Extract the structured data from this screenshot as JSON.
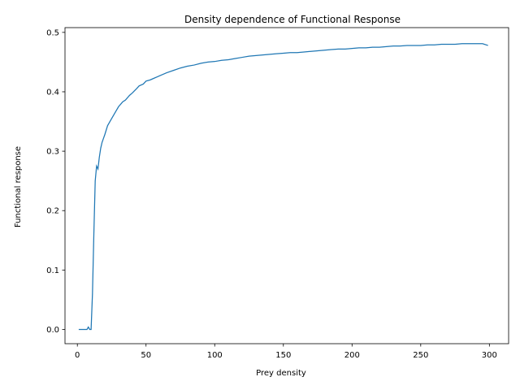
{
  "chart_data": {
    "type": "line",
    "title": "Density dependence of Functional Response",
    "xlabel": "Prey density",
    "ylabel": "Functional response",
    "xlim": [
      -9,
      314
    ],
    "ylim": [
      -0.024,
      0.508
    ],
    "xticks": [
      0,
      50,
      100,
      150,
      200,
      250,
      300
    ],
    "yticks": [
      0.0,
      0.1,
      0.2,
      0.3,
      0.4,
      0.5
    ],
    "xtick_labels": [
      "0",
      "50",
      "100",
      "150",
      "200",
      "250",
      "300"
    ],
    "ytick_labels": [
      "0.0",
      "0.1",
      "0.2",
      "0.3",
      "0.4",
      "0.5"
    ],
    "grid": false,
    "legend": "none",
    "line_color": "#1f77b4",
    "series": [
      {
        "x": [
          1,
          3,
          5,
          7,
          8,
          9,
          10,
          11,
          12,
          13,
          14,
          15,
          16,
          17,
          18,
          20,
          22,
          25,
          28,
          30,
          33,
          35,
          38,
          40,
          43,
          45,
          48,
          50,
          53,
          55,
          58,
          60,
          65,
          70,
          75,
          80,
          85,
          90,
          95,
          100,
          105,
          110,
          115,
          120,
          125,
          130,
          135,
          140,
          145,
          150,
          155,
          160,
          165,
          170,
          175,
          180,
          185,
          190,
          195,
          200,
          205,
          210,
          215,
          220,
          225,
          230,
          235,
          240,
          245,
          250,
          255,
          260,
          265,
          270,
          275,
          280,
          285,
          290,
          295,
          299
        ],
        "y": [
          0.0,
          0.0,
          0.0,
          0.0,
          0.004,
          0.0,
          0.0,
          0.06,
          0.16,
          0.25,
          0.275,
          0.27,
          0.29,
          0.305,
          0.315,
          0.328,
          0.343,
          0.355,
          0.367,
          0.375,
          0.383,
          0.386,
          0.394,
          0.398,
          0.405,
          0.41,
          0.413,
          0.418,
          0.42,
          0.422,
          0.425,
          0.427,
          0.432,
          0.436,
          0.44,
          0.443,
          0.445,
          0.448,
          0.45,
          0.451,
          0.453,
          0.454,
          0.456,
          0.458,
          0.46,
          0.461,
          0.462,
          0.463,
          0.464,
          0.465,
          0.466,
          0.466,
          0.467,
          0.468,
          0.469,
          0.47,
          0.471,
          0.472,
          0.472,
          0.473,
          0.474,
          0.474,
          0.475,
          0.475,
          0.476,
          0.477,
          0.477,
          0.478,
          0.478,
          0.478,
          0.479,
          0.479,
          0.48,
          0.48,
          0.48,
          0.481,
          0.481,
          0.481,
          0.481,
          0.478
        ]
      }
    ]
  }
}
